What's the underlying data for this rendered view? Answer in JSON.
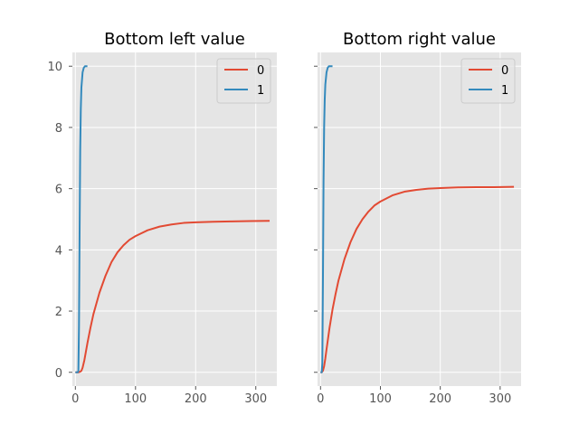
{
  "chart_data": [
    {
      "type": "line",
      "title": "Bottom left value",
      "xlabel": "",
      "ylabel": "",
      "xlim": [
        -5,
        335
      ],
      "ylim": [
        -0.45,
        10.45
      ],
      "xticks": [
        0,
        100,
        200,
        300
      ],
      "yticks": [
        0,
        2,
        4,
        6,
        8,
        10
      ],
      "show_yticklabels": true,
      "grid": true,
      "legend": "top-right",
      "series": [
        {
          "name": "0",
          "color": "#E24A33",
          "x": [
            0,
            5,
            8,
            10,
            12,
            15,
            20,
            25,
            30,
            40,
            50,
            60,
            70,
            80,
            90,
            100,
            120,
            140,
            160,
            180,
            200,
            230,
            260,
            290,
            323
          ],
          "y": [
            0,
            0,
            0.02,
            0.05,
            0.15,
            0.4,
            0.95,
            1.45,
            1.9,
            2.6,
            3.15,
            3.6,
            3.92,
            4.15,
            4.33,
            4.45,
            4.64,
            4.76,
            4.83,
            4.88,
            4.9,
            4.92,
            4.93,
            4.94,
            4.95
          ]
        },
        {
          "name": "1",
          "color": "#348ABD",
          "x": [
            0,
            4,
            5,
            6,
            7,
            8,
            9,
            10,
            12,
            14,
            16,
            18,
            20
          ],
          "y": [
            0,
            0,
            0.05,
            1.5,
            4.5,
            7.2,
            8.6,
            9.3,
            9.8,
            9.95,
            10,
            10,
            10
          ]
        }
      ]
    },
    {
      "type": "line",
      "title": "Bottom right value",
      "xlabel": "",
      "ylabel": "",
      "xlim": [
        -5,
        335
      ],
      "ylim": [
        -0.45,
        10.45
      ],
      "xticks": [
        0,
        100,
        200,
        300
      ],
      "yticks": [
        0,
        2,
        4,
        6,
        8,
        10
      ],
      "show_yticklabels": false,
      "grid": true,
      "legend": "top-right",
      "series": [
        {
          "name": "0",
          "color": "#E24A33",
          "x": [
            0,
            2,
            4,
            6,
            8,
            10,
            15,
            20,
            25,
            30,
            40,
            50,
            60,
            70,
            80,
            90,
            100,
            120,
            140,
            160,
            180,
            200,
            230,
            260,
            290,
            323
          ],
          "y": [
            0,
            0,
            0.05,
            0.2,
            0.45,
            0.75,
            1.45,
            2.05,
            2.55,
            3.0,
            3.7,
            4.25,
            4.68,
            5.0,
            5.25,
            5.45,
            5.58,
            5.78,
            5.9,
            5.96,
            6.0,
            6.02,
            6.04,
            6.05,
            6.05,
            6.06
          ]
        },
        {
          "name": "1",
          "color": "#348ABD",
          "x": [
            0,
            2,
            3,
            4,
            5,
            6,
            7,
            8,
            10,
            12,
            14,
            16,
            18,
            20
          ],
          "y": [
            0,
            0,
            0.3,
            3.0,
            6.2,
            8.0,
            8.9,
            9.4,
            9.8,
            9.95,
            10,
            10,
            10,
            10
          ]
        }
      ]
    }
  ]
}
